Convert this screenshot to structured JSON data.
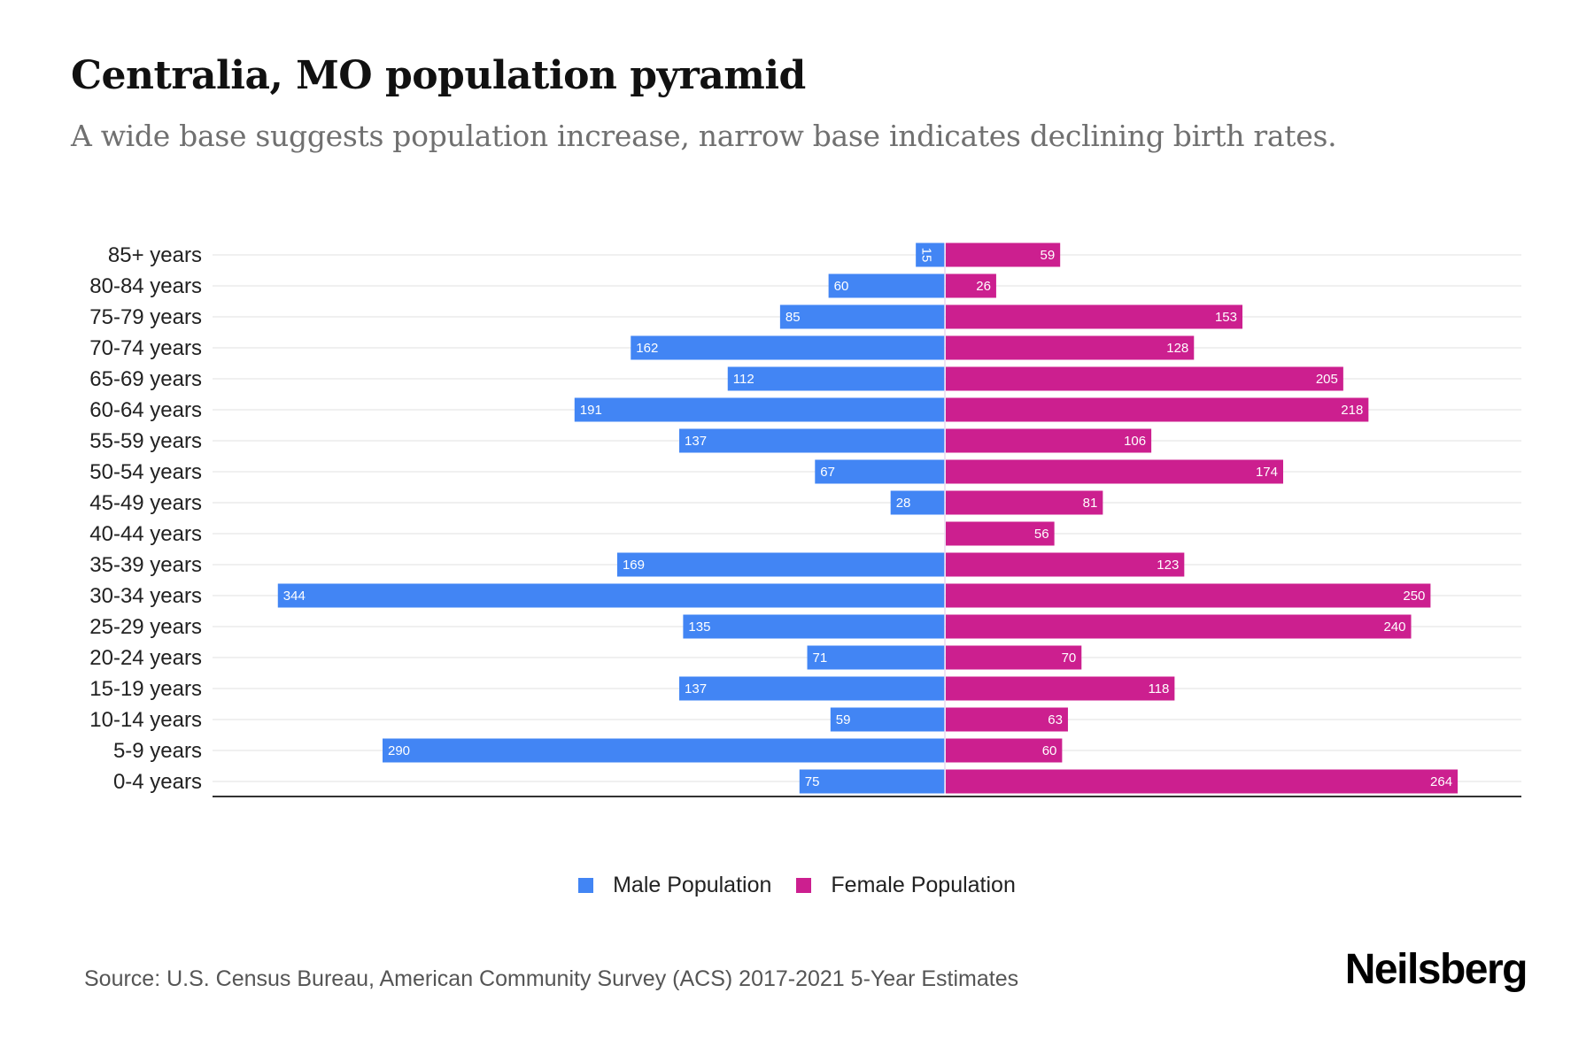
{
  "header": {
    "title": "Centralia, MO population pyramid",
    "subtitle": "A wide base suggests population increase, narrow base indicates declining birth rates."
  },
  "chart_data": {
    "type": "bar",
    "orientation": "horizontal-diverging",
    "title": "Centralia, MO population pyramid",
    "subtitle": "A wide base suggests population increase, narrow base indicates declining birth rates.",
    "xlabel": "",
    "ylabel": "",
    "categories": [
      "85+ years",
      "80-84 years",
      "75-79 years",
      "70-74 years",
      "65-69 years",
      "60-64 years",
      "55-59 years",
      "50-54 years",
      "45-49 years",
      "40-44 years",
      "35-39 years",
      "30-34 years",
      "25-29 years",
      "20-24 years",
      "15-19 years",
      "10-14 years",
      "5-9 years",
      "0-4 years"
    ],
    "series": [
      {
        "name": "Male Population",
        "side": "left",
        "color": "#4285F4",
        "values": [
          15,
          60,
          85,
          162,
          112,
          191,
          137,
          67,
          28,
          0,
          169,
          344,
          135,
          71,
          137,
          59,
          290,
          75
        ]
      },
      {
        "name": "Female Population",
        "side": "right",
        "color": "#CC1F8F",
        "values": [
          59,
          26,
          153,
          128,
          205,
          218,
          106,
          174,
          81,
          56,
          123,
          250,
          240,
          70,
          118,
          63,
          60,
          264
        ]
      }
    ],
    "xlim": [
      -375,
      300
    ],
    "grid": true,
    "legend": "bottom-center",
    "data_labels": true
  },
  "legend": {
    "items": [
      {
        "label": "Male Population",
        "color": "#4285F4"
      },
      {
        "label": "Female Population",
        "color": "#CC1F8F"
      }
    ]
  },
  "footer": {
    "source": "Source: U.S. Census Bureau, American Community Survey (ACS) 2017-2021 5-Year Estimates",
    "brand": "Neilsberg"
  }
}
